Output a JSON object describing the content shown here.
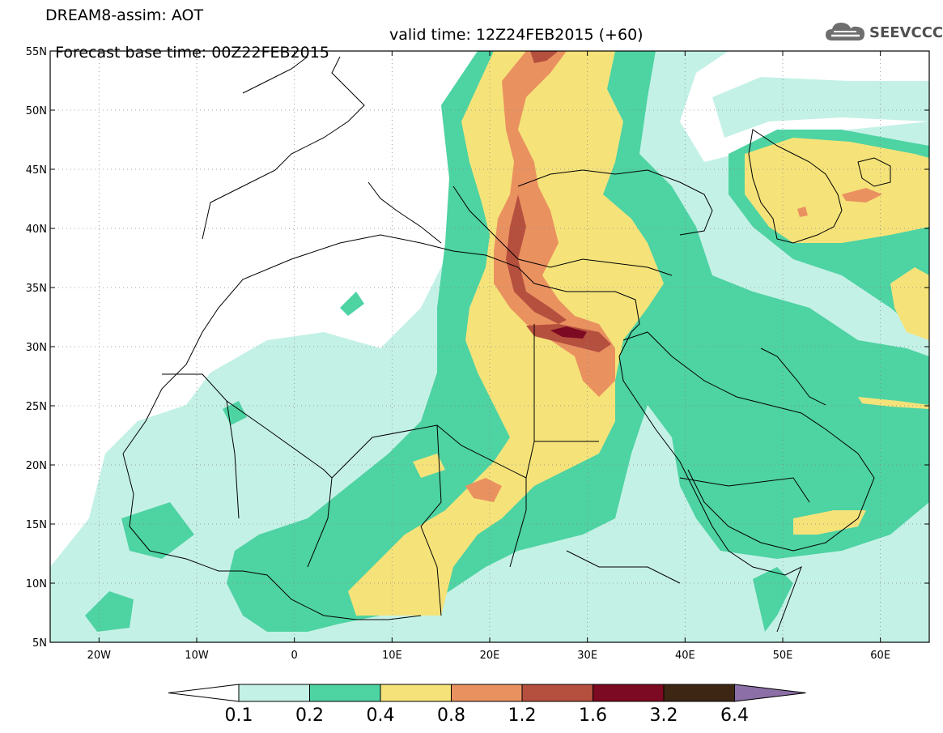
{
  "header": {
    "title_line1": "DREAM8-assim: AOT",
    "title_line2_base": "Forecast base time: 00Z22FEB2015",
    "title_line2_valid": "valid time: 12Z24FEB2015 (+60)",
    "logo_text": "SEEVCCC"
  },
  "map": {
    "lon_range": [
      -25,
      65
    ],
    "lat_range": [
      5,
      55
    ],
    "lat_ticks": [
      "5N",
      "10N",
      "15N",
      "20N",
      "25N",
      "30N",
      "35N",
      "40N",
      "45N",
      "50N",
      "55N"
    ],
    "lon_ticks": [
      "20W",
      "10W",
      "0",
      "10E",
      "20E",
      "30E",
      "40E",
      "50E",
      "60E"
    ]
  },
  "colorbar": {
    "labels": [
      "0.1",
      "0.2",
      "0.4",
      "0.8",
      "1.2",
      "1.6",
      "3.2",
      "6.4"
    ],
    "colors": [
      "#ffffff",
      "#c4f1e6",
      "#4ed3a3",
      "#f5e37a",
      "#ea9160",
      "#b54f3e",
      "#7c0a22",
      "#3e2615",
      "#8c6fa6"
    ]
  }
}
